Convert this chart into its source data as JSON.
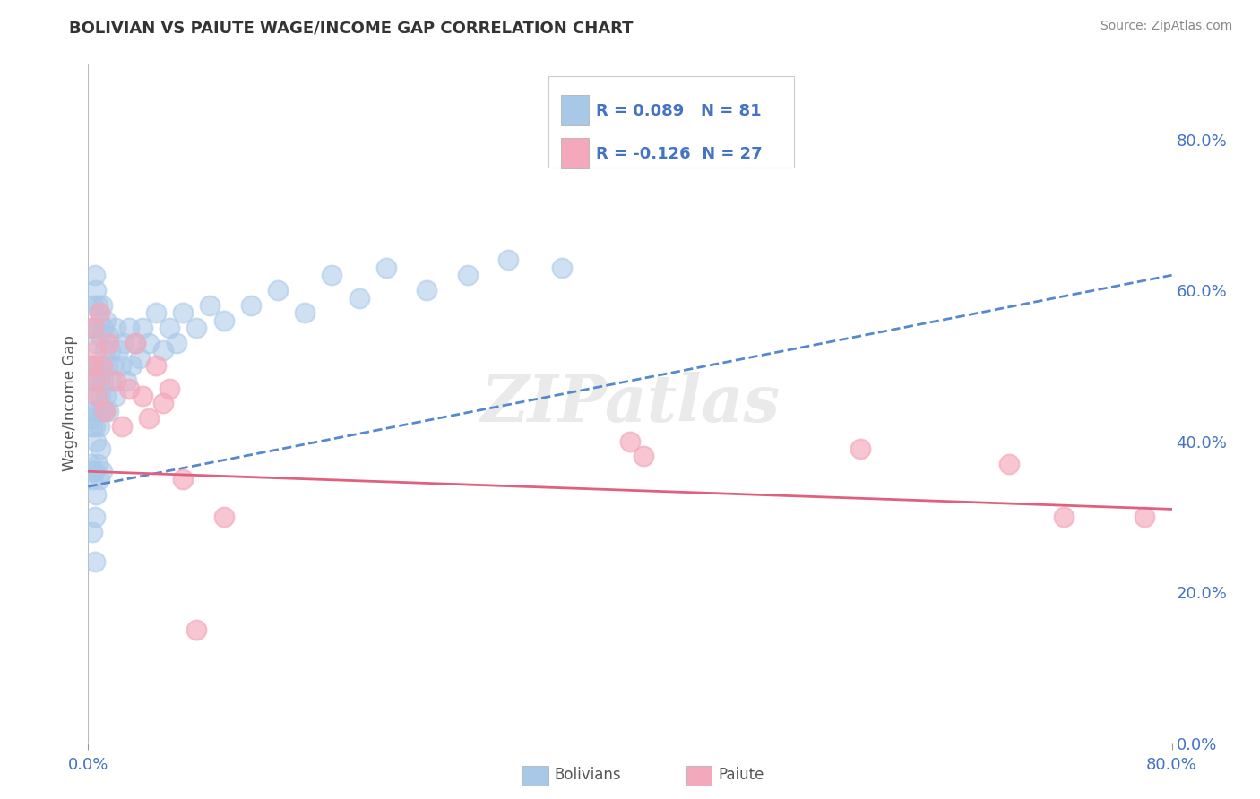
{
  "title": "BOLIVIAN VS PAIUTE WAGE/INCOME GAP CORRELATION CHART",
  "source": "Source: ZipAtlas.com",
  "ylabel": "Wage/Income Gap",
  "xlim": [
    0.0,
    80.0
  ],
  "ylim": [
    0.0,
    90.0
  ],
  "ytick_vals": [
    0.0,
    20.0,
    40.0,
    60.0,
    80.0
  ],
  "ytick_labels": [
    "0.0%",
    "20.0%",
    "40.0%",
    "60.0%",
    "80.0%"
  ],
  "xtick_vals": [
    0.0,
    80.0
  ],
  "xtick_labels": [
    "0.0%",
    "80.0%"
  ],
  "legend_bolivian": "R = 0.089   N = 81",
  "legend_paiute": "R = -0.126  N = 27",
  "bolivian_color": "#a8c8e8",
  "paiute_color": "#f4a8bb",
  "trendline_bolivian_color": "#5588cc",
  "trendline_paiute_color": "#e06080",
  "background_color": "#ffffff",
  "grid_color": "#d8d8d8",
  "watermark": "ZIPatlas",
  "title_color": "#333333",
  "tick_color": "#4472c4",
  "legend_text_color": "#4472c4",
  "bottom_legend_color": "#555555",
  "bolivian_x": [
    0.2,
    0.2,
    0.2,
    0.3,
    0.3,
    0.3,
    0.3,
    0.3,
    0.4,
    0.4,
    0.4,
    0.4,
    0.5,
    0.5,
    0.5,
    0.5,
    0.5,
    0.5,
    0.5,
    0.6,
    0.6,
    0.6,
    0.6,
    0.6,
    0.7,
    0.7,
    0.7,
    0.7,
    0.8,
    0.8,
    0.8,
    0.8,
    0.9,
    0.9,
    0.9,
    1.0,
    1.0,
    1.0,
    1.0,
    1.1,
    1.1,
    1.2,
    1.2,
    1.3,
    1.3,
    1.4,
    1.5,
    1.5,
    1.6,
    1.7,
    1.8,
    2.0,
    2.0,
    2.2,
    2.4,
    2.6,
    2.8,
    3.0,
    3.2,
    3.5,
    3.8,
    4.0,
    4.5,
    5.0,
    5.5,
    6.0,
    6.5,
    7.0,
    8.0,
    9.0,
    10.0,
    12.0,
    14.0,
    16.0,
    18.0,
    20.0,
    22.0,
    25.0,
    28.0,
    31.0,
    35.0
  ],
  "bolivian_y": [
    50.0,
    43.0,
    37.0,
    55.0,
    48.0,
    42.0,
    35.0,
    28.0,
    58.0,
    50.0,
    44.0,
    36.0,
    62.0,
    55.0,
    48.0,
    42.0,
    36.0,
    30.0,
    24.0,
    60.0,
    53.0,
    46.0,
    40.0,
    33.0,
    58.0,
    50.0,
    44.0,
    37.0,
    56.0,
    48.0,
    42.0,
    35.0,
    54.0,
    46.0,
    39.0,
    58.0,
    50.0,
    44.0,
    36.0,
    55.0,
    48.0,
    52.0,
    44.0,
    56.0,
    46.0,
    50.0,
    54.0,
    44.0,
    52.0,
    48.0,
    50.0,
    55.0,
    46.0,
    52.0,
    50.0,
    53.0,
    48.0,
    55.0,
    50.0,
    53.0,
    51.0,
    55.0,
    53.0,
    57.0,
    52.0,
    55.0,
    53.0,
    57.0,
    55.0,
    58.0,
    56.0,
    58.0,
    60.0,
    57.0,
    62.0,
    59.0,
    63.0,
    60.0,
    62.0,
    64.0,
    63.0
  ],
  "paiute_x": [
    0.3,
    0.4,
    0.5,
    0.6,
    0.7,
    0.8,
    1.0,
    1.2,
    1.5,
    2.0,
    2.5,
    3.0,
    3.5,
    4.0,
    4.5,
    5.0,
    5.5,
    6.0,
    7.0,
    8.0,
    10.0,
    40.0,
    41.0,
    57.0,
    68.0,
    72.0,
    78.0
  ],
  "paiute_y": [
    50.0,
    55.0,
    48.0,
    52.0,
    46.0,
    57.0,
    50.0,
    44.0,
    53.0,
    48.0,
    42.0,
    47.0,
    53.0,
    46.0,
    43.0,
    50.0,
    45.0,
    47.0,
    35.0,
    15.0,
    30.0,
    40.0,
    38.0,
    39.0,
    37.0,
    30.0,
    30.0
  ],
  "trendline_bolivian_x0": 0.0,
  "trendline_bolivian_y0": 34.0,
  "trendline_bolivian_x1": 80.0,
  "trendline_bolivian_y1": 62.0,
  "trendline_paiute_x0": 0.0,
  "trendline_paiute_y0": 36.0,
  "trendline_paiute_x1": 80.0,
  "trendline_paiute_y1": 31.0
}
